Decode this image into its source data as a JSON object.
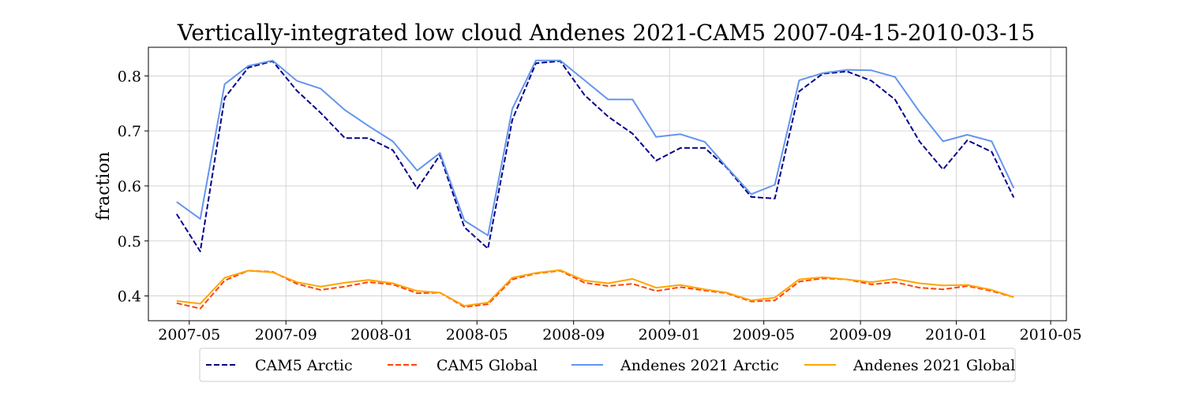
{
  "chart_data": {
    "type": "line",
    "title": "Vertically-integrated low cloud Andenes 2021-CAM5 2007-04-15-2010-03-15",
    "xlabel": "",
    "ylabel": "fraction",
    "x": [
      "2007-04-15",
      "2007-05-15",
      "2007-06-15",
      "2007-07-15",
      "2007-08-15",
      "2007-09-15",
      "2007-10-15",
      "2007-11-15",
      "2007-12-15",
      "2008-01-15",
      "2008-02-15",
      "2008-03-15",
      "2008-04-15",
      "2008-05-15",
      "2008-06-15",
      "2008-07-15",
      "2008-08-15",
      "2008-09-15",
      "2008-10-15",
      "2008-11-15",
      "2008-12-15",
      "2009-01-15",
      "2009-02-15",
      "2009-03-15",
      "2009-04-15",
      "2009-05-15",
      "2009-06-15",
      "2009-07-15",
      "2009-08-15",
      "2009-09-15",
      "2009-10-15",
      "2009-11-15",
      "2009-12-15",
      "2010-01-15",
      "2010-02-15",
      "2010-03-15"
    ],
    "x_ticks": [
      "2007-05",
      "2007-09",
      "2008-01",
      "2008-05",
      "2008-09",
      "2009-01",
      "2009-05",
      "2009-09",
      "2010-01",
      "2010-05"
    ],
    "xlim": [
      "2007-03-10",
      "2010-05-21"
    ],
    "y_ticks": [
      0.4,
      0.5,
      0.6,
      0.7,
      0.8
    ],
    "ylim": [
      0.355,
      0.852
    ],
    "grid": true,
    "legend_position": "bottom-center",
    "series": [
      {
        "name": "CAM5 Arctic",
        "color": "#00008b",
        "dash": true,
        "values": [
          0.549,
          0.481,
          0.76,
          0.815,
          0.827,
          0.773,
          0.733,
          0.687,
          0.687,
          0.665,
          0.595,
          0.656,
          0.525,
          0.486,
          0.72,
          0.823,
          0.827,
          0.765,
          0.726,
          0.695,
          0.646,
          0.669,
          0.669,
          0.633,
          0.58,
          0.577,
          0.772,
          0.804,
          0.808,
          0.791,
          0.757,
          0.681,
          0.63,
          0.683,
          0.662,
          0.579
        ]
      },
      {
        "name": "CAM5 Global",
        "color": "#ff4500",
        "dash": true,
        "values": [
          0.387,
          0.377,
          0.428,
          0.446,
          0.444,
          0.422,
          0.411,
          0.417,
          0.425,
          0.421,
          0.405,
          0.406,
          0.38,
          0.385,
          0.43,
          0.441,
          0.446,
          0.424,
          0.418,
          0.422,
          0.409,
          0.416,
          0.41,
          0.405,
          0.39,
          0.392,
          0.426,
          0.432,
          0.43,
          0.421,
          0.425,
          0.415,
          0.412,
          0.418,
          0.409,
          0.398
        ]
      },
      {
        "name": "Andenes 2021 Arctic",
        "color": "#6495ed",
        "dash": false,
        "values": [
          0.571,
          0.54,
          0.785,
          0.818,
          0.828,
          0.791,
          0.777,
          0.738,
          0.709,
          0.681,
          0.628,
          0.66,
          0.537,
          0.51,
          0.74,
          0.828,
          0.828,
          0.792,
          0.757,
          0.757,
          0.689,
          0.694,
          0.68,
          0.634,
          0.585,
          0.602,
          0.792,
          0.805,
          0.811,
          0.81,
          0.798,
          0.735,
          0.681,
          0.693,
          0.681,
          0.596
        ]
      },
      {
        "name": "Andenes 2021 Global",
        "color": "#ffa500",
        "dash": false,
        "values": [
          0.391,
          0.386,
          0.433,
          0.446,
          0.443,
          0.425,
          0.417,
          0.424,
          0.429,
          0.423,
          0.409,
          0.406,
          0.382,
          0.388,
          0.433,
          0.442,
          0.447,
          0.428,
          0.423,
          0.431,
          0.415,
          0.42,
          0.412,
          0.406,
          0.392,
          0.397,
          0.43,
          0.434,
          0.43,
          0.425,
          0.431,
          0.423,
          0.419,
          0.42,
          0.411,
          0.398
        ]
      }
    ]
  }
}
